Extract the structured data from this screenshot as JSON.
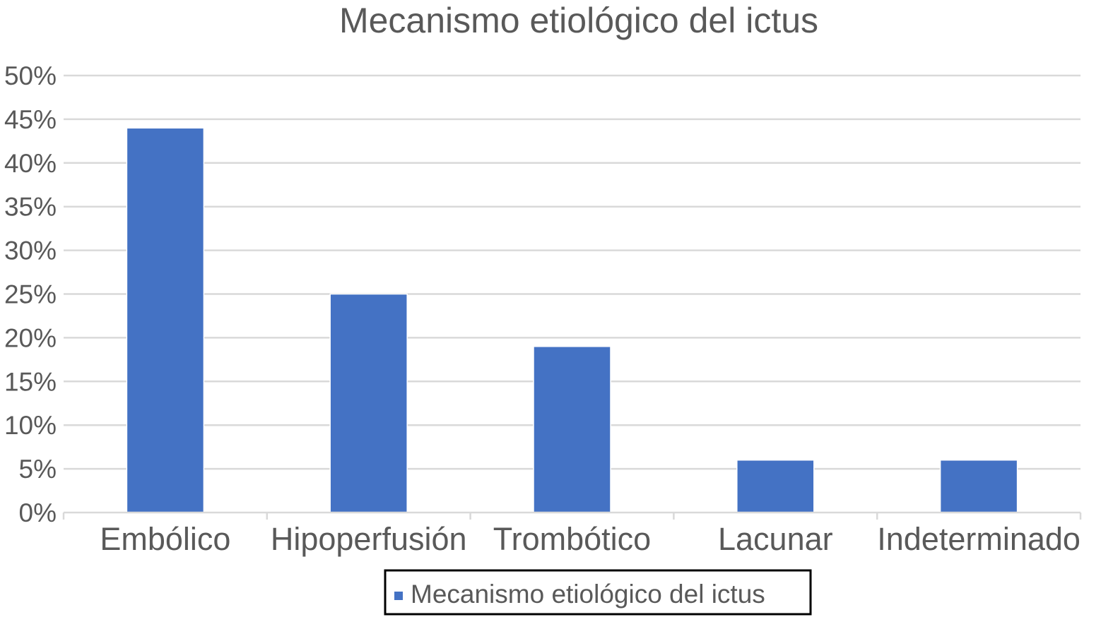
{
  "chart_data": {
    "type": "bar",
    "title": "Mecanismo etiológico del ictus",
    "xlabel": "",
    "ylabel": "",
    "categories": [
      "Embólico",
      "Hipoperfusión",
      "Trombótico",
      "Lacunar",
      "Indeterminado"
    ],
    "series": [
      {
        "name": "Mecanismo etiológico del ictus",
        "values": [
          0.44,
          0.25,
          0.19,
          0.06,
          0.06
        ],
        "color": "#4472c4"
      }
    ],
    "ylim": [
      0,
      0.5
    ],
    "y_ticks": [
      0,
      0.05,
      0.1,
      0.15,
      0.2,
      0.25,
      0.3,
      0.35,
      0.4,
      0.45,
      0.5
    ],
    "y_tick_labels": [
      "0%",
      "5%",
      "10%",
      "15%",
      "20%",
      "25%",
      "30%",
      "35%",
      "40%",
      "45%",
      "50%"
    ],
    "grid": true,
    "legend": {
      "position": "bottom",
      "label": "Mecanismo etiológico del ictus"
    },
    "colors": {
      "bar": "#4472c4",
      "grid": "#d9d9d9",
      "text": "#595959"
    }
  }
}
